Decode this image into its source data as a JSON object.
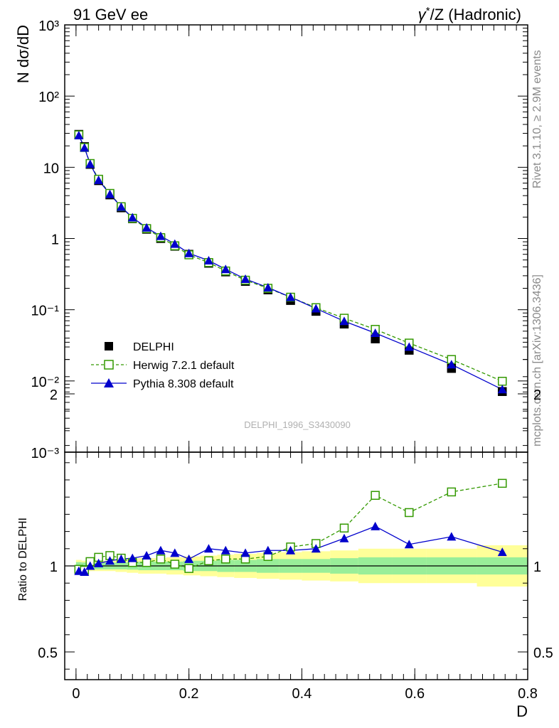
{
  "header": {
    "left": "91 GeV ee",
    "right_gamma": "γ",
    "right_star": "*",
    "right_rest": "/Z (Hadronic)"
  },
  "side_labels": {
    "rivet": "Rivet 3.1.10, ≥ 2.9M events",
    "mcplots": "mcplots.cern.ch [arXiv:1306.3436]"
  },
  "watermark": "DELPHI_1996_S3430090",
  "legend": {
    "delphi": "DELPHI",
    "herwig": "Herwig 7.2.1 default",
    "pythia": "Pythia 8.308 default"
  },
  "colors": {
    "delphi": "#000000",
    "herwig": "#339900",
    "pythia": "#0000cc",
    "band_inner": "#99ee99",
    "band_outer": "#ffff99"
  },
  "chart_data": [
    {
      "type": "scatter",
      "panel": "main",
      "ylabel": "N dσ/dD",
      "yscale": "log",
      "ylim": [
        0.001,
        1000
      ],
      "xlim": [
        -0.02,
        0.8
      ],
      "y_tick_labels": [
        "10⁻³",
        "10⁻²",
        "10⁻¹",
        "1",
        "10",
        "10²",
        "10³"
      ],
      "x": [
        0.005,
        0.015,
        0.025,
        0.04,
        0.06,
        0.08,
        0.1,
        0.125,
        0.15,
        0.175,
        0.2,
        0.235,
        0.265,
        0.3,
        0.34,
        0.38,
        0.425,
        0.475,
        0.53,
        0.59,
        0.665,
        0.755
      ],
      "series": [
        {
          "name": "DELPHI",
          "values": [
            29,
            19.5,
            11,
            6.5,
            4.1,
            2.7,
            1.9,
            1.35,
            1.0,
            0.78,
            0.6,
            0.45,
            0.34,
            0.25,
            0.19,
            0.135,
            0.095,
            0.063,
            0.039,
            0.027,
            0.015,
            0.0071
          ]
        },
        {
          "name": "Herwig 7.2.1 default",
          "values": [
            28.5,
            19.0,
            11.3,
            6.8,
            4.3,
            2.8,
            1.92,
            1.38,
            1.03,
            0.79,
            0.59,
            0.46,
            0.35,
            0.26,
            0.2,
            0.15,
            0.107,
            0.076,
            0.053,
            0.034,
            0.02,
            0.0099
          ]
        },
        {
          "name": "Pythia 8.308 default",
          "values": [
            28.0,
            18.8,
            11.1,
            6.6,
            4.2,
            2.78,
            1.97,
            1.42,
            1.08,
            0.84,
            0.62,
            0.49,
            0.37,
            0.27,
            0.205,
            0.15,
            0.104,
            0.069,
            0.047,
            0.03,
            0.017,
            0.0076
          ]
        }
      ]
    },
    {
      "type": "line",
      "panel": "ratio",
      "ylabel": "Ratio to DELPHI",
      "xlabel": "D",
      "ylim": [
        0.35,
        2.4
      ],
      "xlim": [
        -0.02,
        0.8
      ],
      "y_tick_labels": [
        "0.5",
        "1",
        "2"
      ],
      "x_tick_labels": [
        "0",
        "0.2",
        "0.4",
        "0.6",
        "0.8"
      ],
      "x": [
        0.005,
        0.015,
        0.025,
        0.04,
        0.06,
        0.08,
        0.1,
        0.125,
        0.15,
        0.175,
        0.2,
        0.235,
        0.265,
        0.3,
        0.34,
        0.38,
        0.425,
        0.475,
        0.53,
        0.59,
        0.665,
        0.755
      ],
      "series": [
        {
          "name": "Herwig 7.2.1 default",
          "values": [
            0.98,
            0.975,
            1.025,
            1.05,
            1.06,
            1.045,
            1.02,
            1.02,
            1.04,
            1.01,
            0.985,
            1.03,
            1.04,
            1.04,
            1.055,
            1.11,
            1.13,
            1.22,
            1.41,
            1.31,
            1.43,
            1.48
          ]
        },
        {
          "name": "Pythia 8.308 default",
          "values": [
            0.97,
            0.965,
            1.0,
            1.015,
            1.03,
            1.04,
            1.045,
            1.06,
            1.09,
            1.075,
            1.04,
            1.1,
            1.09,
            1.075,
            1.09,
            1.09,
            1.1,
            1.16,
            1.23,
            1.125,
            1.17,
            1.08
          ]
        }
      ],
      "uncertainty_bands": {
        "edges": [
          0.0,
          0.01,
          0.02,
          0.03,
          0.05,
          0.07,
          0.09,
          0.11,
          0.14,
          0.16,
          0.19,
          0.22,
          0.25,
          0.28,
          0.32,
          0.36,
          0.4,
          0.45,
          0.5,
          0.56,
          0.62,
          0.71,
          0.8
        ],
        "inner": [
          0.022,
          0.02,
          0.02,
          0.02,
          0.02,
          0.02,
          0.022,
          0.025,
          0.025,
          0.025,
          0.03,
          0.03,
          0.035,
          0.035,
          0.04,
          0.04,
          0.04,
          0.045,
          0.05,
          0.05,
          0.05,
          0.05
        ],
        "outer": [
          0.035,
          0.03,
          0.03,
          0.03,
          0.03,
          0.035,
          0.04,
          0.045,
          0.045,
          0.05,
          0.055,
          0.06,
          0.065,
          0.07,
          0.075,
          0.08,
          0.085,
          0.09,
          0.1,
          0.1,
          0.1,
          0.12
        ]
      }
    }
  ]
}
